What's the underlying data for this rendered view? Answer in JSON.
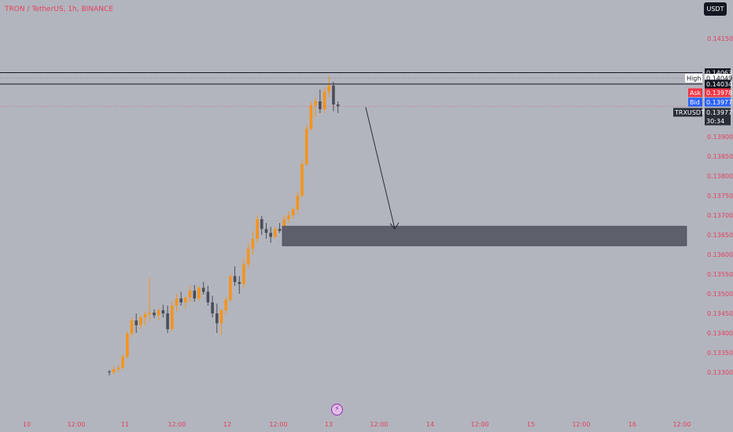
{
  "header": {
    "symbol_title": "TRON / TetherUS, 1h, BINANCE"
  },
  "currency_button": "USDT",
  "price_axis": {
    "ticks": [
      "0.14150",
      "0.13900",
      "0.13850",
      "0.13800",
      "0.13750",
      "0.13700",
      "0.13650",
      "0.13600",
      "0.13550",
      "0.13500",
      "0.13450",
      "0.13400",
      "0.13350",
      "0.13300"
    ]
  },
  "time_axis": {
    "labels": [
      "10",
      "12:00",
      "11",
      "12:00",
      "12",
      "12:00",
      "13",
      "12:00",
      "14",
      "12:00",
      "15",
      "12:00",
      "16",
      "12:00"
    ]
  },
  "price_labels": {
    "line_top": "0.14063",
    "high_tag": "High",
    "high_value": "0.14049",
    "line_second": "0.14034",
    "ask_tag": "Ask",
    "ask_value": "0.13978",
    "bid_tag": "Bid",
    "bid_value": "0.13977",
    "symbol_tag": "TRXUSDT",
    "last_value": "0.13977",
    "countdown": "30:34"
  },
  "drawings": {
    "horizontal_levels": [
      0.14063,
      0.14034
    ],
    "demand_zone": {
      "from": 0.13622,
      "to": 0.13672
    },
    "arrow": {
      "start_price": 0.13975,
      "end_price": 0.13665
    }
  },
  "chart_data": {
    "type": "candlestick",
    "title": "TRON / TetherUS, 1h, BINANCE",
    "series": [
      {
        "name": "TRXUSDT",
        "fields": [
          "open",
          "high",
          "low",
          "close"
        ],
        "values": [
          [
            0.13302,
            0.13306,
            0.13292,
            0.133
          ],
          [
            0.133,
            0.13315,
            0.13294,
            0.13308
          ],
          [
            0.13308,
            0.1332,
            0.133,
            0.13312
          ],
          [
            0.13312,
            0.13345,
            0.13306,
            0.1334
          ],
          [
            0.1334,
            0.13405,
            0.13335,
            0.13398
          ],
          [
            0.13398,
            0.1344,
            0.1339,
            0.13432
          ],
          [
            0.13432,
            0.1345,
            0.134,
            0.1342
          ],
          [
            0.1342,
            0.13445,
            0.1341,
            0.1344
          ],
          [
            0.1344,
            0.13455,
            0.1342,
            0.13448
          ],
          [
            0.13448,
            0.1354,
            0.1343,
            0.13452
          ],
          [
            0.13452,
            0.1346,
            0.13438,
            0.13445
          ],
          [
            0.13445,
            0.13462,
            0.13432,
            0.13458
          ],
          [
            0.13458,
            0.13472,
            0.1344,
            0.1345
          ],
          [
            0.1345,
            0.1347,
            0.134,
            0.1341
          ],
          [
            0.1341,
            0.1348,
            0.13405,
            0.1347
          ],
          [
            0.1347,
            0.135,
            0.13455,
            0.13488
          ],
          [
            0.13488,
            0.13505,
            0.1347,
            0.13478
          ],
          [
            0.13478,
            0.13495,
            0.13462,
            0.1349
          ],
          [
            0.1349,
            0.1352,
            0.13478,
            0.13508
          ],
          [
            0.13508,
            0.13522,
            0.1348,
            0.13488
          ],
          [
            0.13488,
            0.1352,
            0.1348,
            0.13515
          ],
          [
            0.13515,
            0.1353,
            0.13498,
            0.13505
          ],
          [
            0.13505,
            0.1352,
            0.1347,
            0.13478
          ],
          [
            0.13478,
            0.13495,
            0.1344,
            0.1345
          ],
          [
            0.1345,
            0.13475,
            0.134,
            0.13425
          ],
          [
            0.13425,
            0.13462,
            0.13395,
            0.13458
          ],
          [
            0.13458,
            0.13492,
            0.13448,
            0.13485
          ],
          [
            0.13485,
            0.1355,
            0.13478,
            0.13545
          ],
          [
            0.13545,
            0.1357,
            0.1352,
            0.1353
          ],
          [
            0.1353,
            0.13545,
            0.135,
            0.13525
          ],
          [
            0.13525,
            0.1359,
            0.13515,
            0.13575
          ],
          [
            0.13575,
            0.1363,
            0.13565,
            0.13615
          ],
          [
            0.13615,
            0.1366,
            0.136,
            0.1364
          ],
          [
            0.1364,
            0.137,
            0.1363,
            0.1369
          ],
          [
            0.1369,
            0.13698,
            0.1365,
            0.13665
          ],
          [
            0.13665,
            0.1368,
            0.1364,
            0.13655
          ],
          [
            0.13655,
            0.1367,
            0.1363,
            0.13645
          ],
          [
            0.13645,
            0.1367,
            0.1364,
            0.13665
          ],
          [
            0.13665,
            0.1368,
            0.13655,
            0.1366
          ],
          [
            0.1366,
            0.137,
            0.13655,
            0.1369
          ],
          [
            0.1369,
            0.1371,
            0.1368,
            0.137
          ],
          [
            0.137,
            0.1372,
            0.1369,
            0.13715
          ],
          [
            0.13715,
            0.1376,
            0.13705,
            0.1375
          ],
          [
            0.1375,
            0.1384,
            0.13745,
            0.1383
          ],
          [
            0.1383,
            0.1393,
            0.13825,
            0.1392
          ],
          [
            0.1392,
            0.1399,
            0.13915,
            0.1398
          ],
          [
            0.1398,
            0.14,
            0.1395,
            0.1399
          ],
          [
            0.1399,
            0.1402,
            0.1396,
            0.1397
          ],
          [
            0.1397,
            0.14025,
            0.1396,
            0.14015
          ],
          [
            0.14015,
            0.14055,
            0.14,
            0.1403
          ],
          [
            0.1403,
            0.1404,
            0.13965,
            0.13982
          ],
          [
            0.13982,
            0.1399,
            0.1396,
            0.13977
          ]
        ]
      }
    ],
    "ylim": [
      0.1328,
      0.142
    ],
    "colors": {
      "up": "#f7931a",
      "down": "#4a4e5a",
      "background": "#b2b5be"
    }
  }
}
